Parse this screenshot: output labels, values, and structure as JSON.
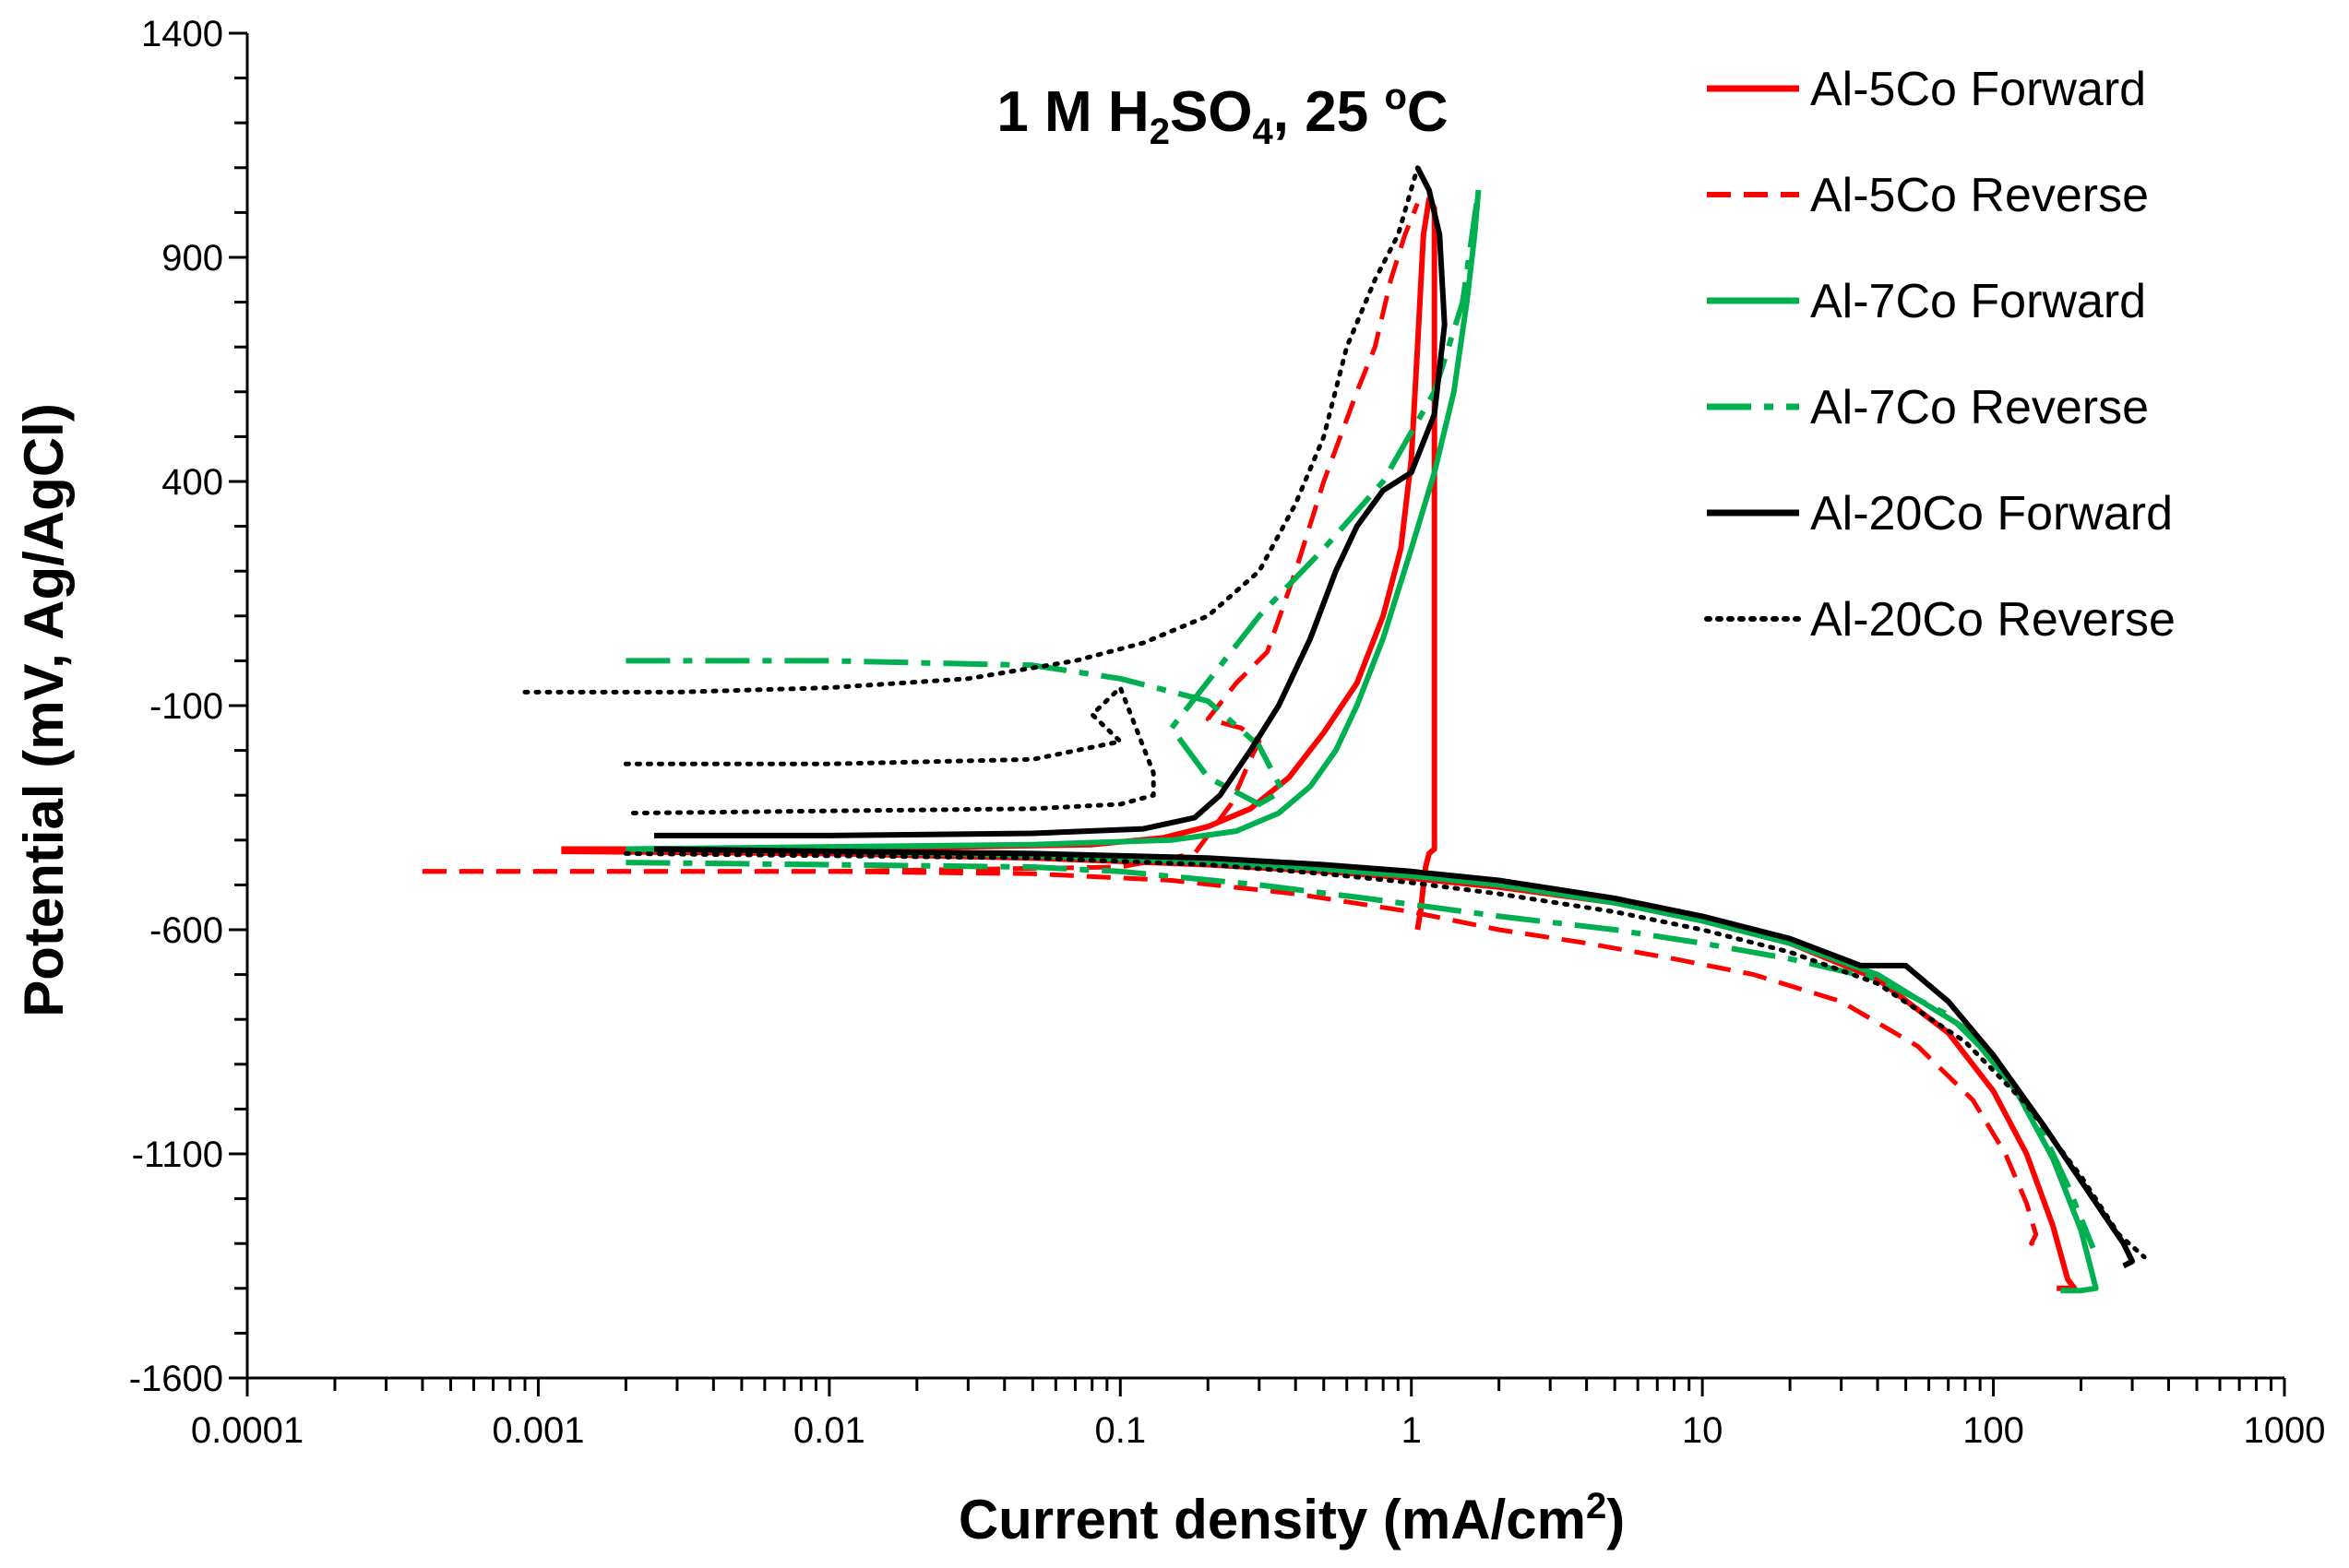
{
  "chart_data": {
    "type": "line",
    "title": {
      "main": "1 M H",
      "sub1": "2",
      "mid": "SO",
      "sub2": "4",
      "tail": ", 25 ",
      "sup": "o",
      "end": "C"
    },
    "xlabel": {
      "main": "Current density (mA/cm",
      "sup": "2",
      "end": ")"
    },
    "ylabel": "Potential (mV, Ag/AgCl)",
    "xscale": "log",
    "xlim": [
      0.0001,
      1000
    ],
    "ylim": [
      -1600,
      1400
    ],
    "x_ticks": [
      0.0001,
      0.001,
      0.01,
      0.1,
      1,
      10,
      100,
      1000
    ],
    "x_tick_labels": [
      "0.0001",
      "0.001",
      "0.01",
      "0.1",
      "1",
      "10",
      "100",
      "1000"
    ],
    "y_ticks": [
      1400,
      900,
      400,
      -100,
      -600,
      -1100,
      -1600
    ],
    "y_tick_labels": [
      "1400",
      "900",
      "400",
      "-100",
      "-600",
      "-1100",
      "-1600"
    ],
    "y_minor_step": 100,
    "grid": false,
    "legend_position": "top-right",
    "series": [
      {
        "name": "Al-5Co Forward",
        "color": "#ff0000",
        "style": "solid",
        "x": [
          0.0012,
          0.003,
          0.01,
          0.03,
          0.08,
          0.14,
          0.2,
          0.28,
          0.38,
          0.5,
          0.65,
          0.8,
          0.92,
          1.0,
          1.05,
          1.1,
          1.15,
          1.2,
          1.2,
          1.15,
          1.12,
          1.1,
          1.08,
          1.05
        ],
        "y": [
          -420,
          -420,
          -420,
          -415,
          -410,
          -395,
          -370,
          -330,
          -260,
          -160,
          -50,
          100,
          250,
          450,
          700,
          950,
          1030,
          1010,
          -420,
          -430,
          -460,
          -500,
          -550,
          -600
        ],
        "x2": [
          0.0012,
          0.01,
          0.05,
          0.2,
          0.5,
          1,
          2,
          5,
          10,
          20,
          40,
          70,
          100,
          130,
          160,
          180,
          190,
          180,
          165
        ],
        "y2": [
          -425,
          -430,
          -440,
          -455,
          -470,
          -485,
          -505,
          -540,
          -580,
          -630,
          -710,
          -830,
          -960,
          -1100,
          -1260,
          -1380,
          -1400,
          -1400,
          -1400
        ],
        "_note": "x/y: anodic branch; x2/y2: cathodic branch"
      },
      {
        "name": "Al-5Co Reverse",
        "color": "#ff0000",
        "style": "dashed",
        "x": [
          0.0004,
          0.001,
          0.003,
          0.01,
          0.05,
          0.15,
          0.4,
          1,
          2,
          4,
          8,
          15,
          30,
          55,
          85,
          110,
          130,
          140,
          135,
          150
        ],
        "y": [
          -470,
          -470,
          -470,
          -470,
          -475,
          -490,
          -520,
          -560,
          -600,
          -630,
          -665,
          -700,
          -760,
          -860,
          -980,
          -1100,
          -1210,
          -1280,
          -1300,
          -1290
        ],
        "x2": [
          0.0004,
          0.01,
          0.1,
          0.18,
          0.24,
          0.28,
          0.3,
          0.26,
          0.2,
          0.25,
          0.32,
          0.4,
          0.5,
          0.65,
          0.75,
          0.85,
          0.95,
          1.05
        ],
        "y2": [
          -470,
          -470,
          -460,
          -430,
          -320,
          -220,
          -180,
          -150,
          -130,
          -50,
          20,
          200,
          400,
          600,
          700,
          850,
          950,
          1020
        ],
        "_note": "x/y: cathodic branch; x2/y2: anodic/hysteresis branch"
      },
      {
        "name": "Al-7Co Forward",
        "color": "#00b050",
        "style": "solid",
        "x": [
          0.002,
          0.01,
          0.05,
          0.15,
          0.25,
          0.35,
          0.45,
          0.55,
          0.65,
          0.8,
          1,
          1.2,
          1.4,
          1.55,
          1.65,
          1.7
        ],
        "y": [
          -420,
          -415,
          -410,
          -400,
          -380,
          -340,
          -280,
          -200,
          -100,
          50,
          250,
          420,
          600,
          800,
          950,
          1050
        ],
        "x2": [
          0.002,
          0.01,
          0.05,
          0.2,
          0.5,
          1,
          2,
          5,
          10,
          20,
          40,
          80,
          120,
          160,
          200,
          225,
          200,
          170
        ],
        "y2": [
          -420,
          -425,
          -435,
          -450,
          -465,
          -480,
          -500,
          -540,
          -580,
          -630,
          -700,
          -820,
          -960,
          -1110,
          -1270,
          -1400,
          -1405,
          -1405
        ]
      },
      {
        "name": "Al-7Co Reverse",
        "color": "#00b050",
        "style": "dashdot",
        "x": [
          0.002,
          0.01,
          0.05,
          0.1,
          0.3,
          0.7,
          2,
          5,
          10,
          20,
          40,
          70,
          100,
          140,
          180,
          220
        ],
        "y": [
          -450,
          -455,
          -460,
          -470,
          -500,
          -530,
          -570,
          -600,
          -630,
          -665,
          -710,
          -790,
          -890,
          -1020,
          -1170,
          -1310
        ],
        "x2": [
          0.002,
          0.01,
          0.05,
          0.1,
          0.2,
          0.3,
          0.36,
          0.3,
          0.2,
          0.15,
          0.3,
          0.5,
          0.8,
          1.2,
          1.5,
          1.7
        ],
        "y2": [
          0,
          0,
          -10,
          -40,
          -90,
          -190,
          -290,
          -320,
          -260,
          -150,
          100,
          250,
          400,
          600,
          800,
          1050
        ]
      },
      {
        "name": "Al-20Co Forward",
        "color": "#000000",
        "style": "solid",
        "x": [
          0.0025,
          0.01,
          0.05,
          0.12,
          0.18,
          0.22,
          0.28,
          0.35,
          0.45,
          0.55,
          0.65,
          0.8,
          1.0,
          1.2,
          1.3,
          1.25,
          1.15,
          1.05
        ],
        "y": [
          -390,
          -390,
          -385,
          -375,
          -350,
          -300,
          -200,
          -100,
          50,
          200,
          300,
          380,
          420,
          550,
          750,
          950,
          1050,
          1100
        ],
        "x2": [
          0.0025,
          0.01,
          0.05,
          0.2,
          0.5,
          1,
          2,
          5,
          10,
          20,
          35,
          50,
          70,
          100,
          150,
          220,
          280,
          300,
          280
        ],
        "y2": [
          -420,
          -425,
          -430,
          -440,
          -455,
          -470,
          -490,
          -530,
          -570,
          -620,
          -680,
          -680,
          -760,
          -880,
          -1040,
          -1200,
          -1300,
          -1340,
          -1350
        ]
      },
      {
        "name": "Al-20Co Reverse",
        "color": "#000000",
        "style": "dotted",
        "x": [
          0.0009,
          0.003,
          0.01,
          0.03,
          0.07,
          0.12,
          0.2,
          0.3,
          0.4,
          0.5,
          0.6,
          0.75,
          0.9,
          1.05
        ],
        "y": [
          -70,
          -70,
          -60,
          -40,
          0,
          40,
          100,
          200,
          350,
          500,
          700,
          850,
          950,
          1100
        ],
        "x2": [
          0.002,
          0.01,
          0.05,
          0.1,
          0.08,
          0.1,
          0.13,
          0.13,
          0.1,
          0.05,
          0.01,
          0.002
        ],
        "y2": [
          -230,
          -230,
          -220,
          -180,
          -120,
          -60,
          -250,
          -300,
          -320,
          -330,
          -335,
          -340
        ],
        "x3": [
          0.002,
          0.01,
          0.05,
          0.2,
          0.5,
          1,
          2,
          5,
          10,
          20,
          40,
          80,
          130,
          200,
          270,
          330
        ],
        "y3": [
          -430,
          -435,
          -440,
          -455,
          -475,
          -495,
          -520,
          -560,
          -600,
          -650,
          -720,
          -850,
          -990,
          -1150,
          -1280,
          -1330
        ]
      }
    ]
  }
}
